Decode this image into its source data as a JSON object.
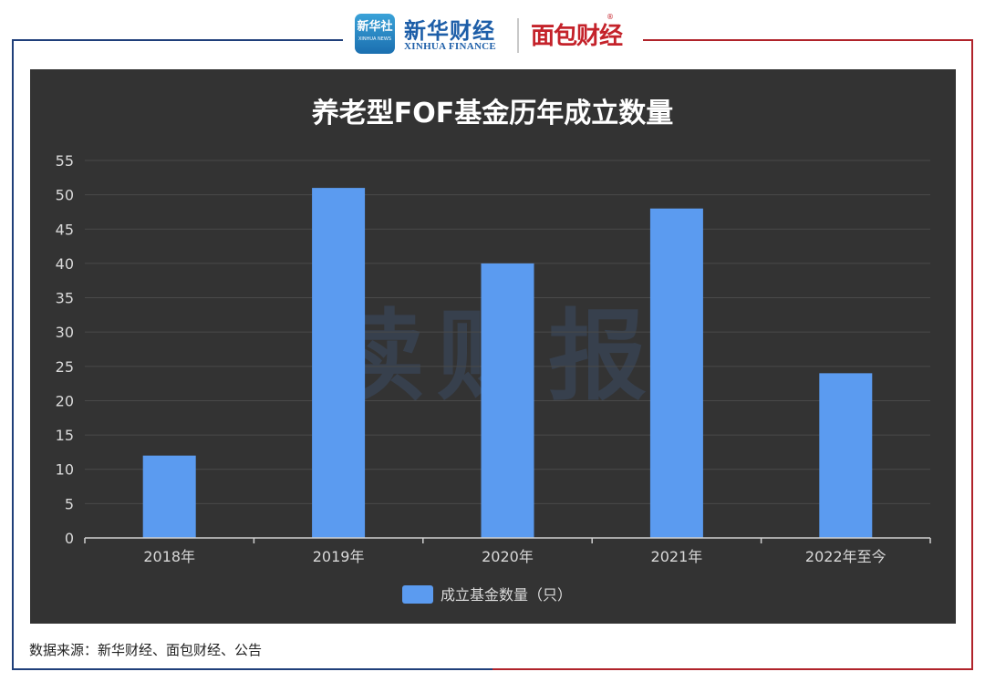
{
  "header": {
    "xinhua_badge": "新华社",
    "xinhua_badge_sub": "XINHUA NEWS",
    "xinhua_title": "新华财经",
    "xinhua_subtitle": "XINHUA FINANCE",
    "mianbao_logo": "面包财经",
    "registered_mark": "®"
  },
  "watermark": "读财报",
  "colors": {
    "background": "#333333",
    "bar": "#5b9bf0",
    "grid": "#4a4a4a",
    "text": "#d9d9d9",
    "title": "#ffffff"
  },
  "chart_data": {
    "type": "bar",
    "title": "养老型FOF基金历年成立数量",
    "categories": [
      "2018年",
      "2019年",
      "2020年",
      "2021年",
      "2022年至今"
    ],
    "series": [
      {
        "name": "成立基金数量（只）",
        "values": [
          12,
          51,
          40,
          48,
          24
        ]
      }
    ],
    "ylim": [
      0,
      55
    ],
    "yticks": [
      0,
      5,
      10,
      15,
      20,
      25,
      30,
      35,
      40,
      45,
      50,
      55
    ],
    "grid": true,
    "legend": "bottom-center"
  },
  "source": "数据来源：新华财经、面包财经、公告"
}
